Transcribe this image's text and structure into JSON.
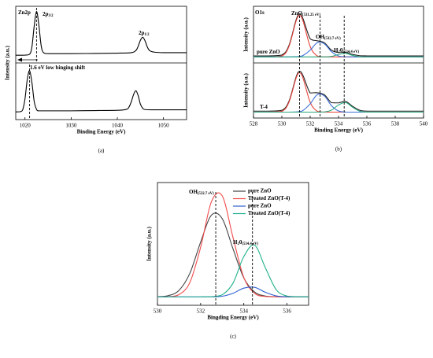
{
  "chart_data": [
    {
      "type": "line",
      "label": "(a)",
      "xlabel": "Binding Energy (eV)",
      "ylabel": "Intensity (a.u.)",
      "xlim": [
        1018,
        1055
      ],
      "xticks": [
        1020,
        1030,
        1040,
        1050
      ],
      "annotations": [
        {
          "segments": [
            {
              "text": "Zn2p"
            }
          ]
        },
        {
          "segments": [
            {
              "text": "2p"
            },
            {
              "text": "3/2",
              "sub": true
            }
          ]
        },
        {
          "segments": [
            {
              "text": "2p"
            },
            {
              "text": "1/2",
              "sub": true
            }
          ]
        },
        {
          "segments": [
            {
              "text": "1.6 eV low binging shift"
            }
          ]
        }
      ],
      "panels": [
        {
          "ylim": [
            -10,
            100
          ],
          "vlines": [
            1022.5
          ],
          "x": [
            1018,
            1020,
            1021,
            1021.5,
            1022,
            1022.5,
            1023,
            1023.5,
            1024,
            1025,
            1027,
            1030,
            1035,
            1040,
            1043,
            1044,
            1044.5,
            1045,
            1045.5,
            1046,
            1046.5,
            1047,
            1048,
            1050,
            1055
          ],
          "series": [
            {
              "color": "#000000",
              "values": [
                5,
                5.2,
                7,
                21,
                62,
                90,
                64,
                24,
                10,
                8,
                8,
                8,
                8.5,
                9,
                10,
                14,
                22,
                34,
                40,
                33,
                21,
                14,
                11,
                10,
                10
              ]
            }
          ]
        },
        {
          "ylim": [
            -10,
            100
          ],
          "vlines": [
            1021
          ],
          "x": [
            1018,
            1019,
            1019.5,
            1020,
            1020.5,
            1021,
            1021.5,
            1022,
            1022.5,
            1023,
            1025,
            1030,
            1035,
            1040,
            1042,
            1042.5,
            1043,
            1043.5,
            1044,
            1044.5,
            1045,
            1045.5,
            1046,
            1048,
            1055
          ],
          "series": [
            {
              "color": "#000000",
              "values": [
                5,
                5.5,
                9,
                30,
                68,
                85,
                62,
                25,
                10,
                7,
                7,
                7,
                7.5,
                8,
                10,
                14,
                24,
                38,
                46,
                37,
                20,
                12,
                9.5,
                9,
                9
              ]
            }
          ]
        }
      ]
    },
    {
      "type": "line",
      "label": "(b)",
      "xlabel": "Binding Energy (eV)",
      "xlim": [
        528,
        540
      ],
      "xticks": [
        528,
        530,
        532,
        534,
        536,
        538,
        540
      ],
      "vlines": [
        531.25,
        532.7,
        534.4
      ],
      "annotations": [
        {
          "segments": [
            {
              "text": "O1s"
            }
          ]
        },
        {
          "segments": [
            {
              "text": "ZnO"
            },
            {
              "text": "(531.25 eV)",
              "sub": true
            }
          ]
        },
        {
          "segments": [
            {
              "text": "OH"
            },
            {
              "text": "(532.7 eV)",
              "sub": true
            }
          ]
        },
        {
          "segments": [
            {
              "text": "H"
            },
            {
              "text": "2",
              "sub": true
            },
            {
              "text": "0"
            },
            {
              "text": "(534.4 eV)",
              "sub": true
            }
          ]
        },
        {
          "segments": [
            {
              "text": "pure ZnO"
            }
          ]
        },
        {
          "segments": [
            {
              "text": "T-4"
            }
          ]
        }
      ],
      "panels": [
        {
          "ylim": [
            -12,
            100
          ],
          "ylabel": "Intensity (a.u.)",
          "x": [
            528,
            529,
            530,
            530.5,
            531,
            531.25,
            531.5,
            532,
            532.5,
            533,
            533.5,
            534,
            534.5,
            535,
            535.5,
            536,
            537,
            538,
            540
          ],
          "series": [
            {
              "color": "#222222",
              "values": [
                2,
                2,
                3.7,
                22.5,
                72.6,
                84.9,
                75.1,
                35.8,
                31.8,
                27.9,
                13.3,
                8.5,
                8.9,
                4.9,
                2.4,
                2,
                2,
                2,
                2
              ]
            },
            {
              "color": "#e8433a",
              "values": [
                0,
                0,
                1.7,
                20.5,
                70.3,
                82,
                70.3,
                20.5,
                1.7,
                0,
                0,
                0,
                0,
                0,
                0,
                0,
                0,
                0,
                0
              ]
            },
            {
              "color": "#3a6fd8",
              "values": [
                0,
                0,
                0,
                0,
                0.3,
                0.9,
                2.8,
                13.3,
                28.1,
                25.9,
                10.4,
                1.8,
                0.1,
                0,
                0,
                0,
                0,
                0,
                0
              ]
            },
            {
              "color": "#2aa87e",
              "values": [
                0,
                0,
                0,
                0,
                0,
                0,
                0,
                0,
                0,
                0,
                0.9,
                4.7,
                6.8,
                2.9,
                0.4,
                0,
                0,
                0,
                0
              ]
            }
          ]
        },
        {
          "ylim": [
            -12,
            100
          ],
          "ylabel": "Intensity (a.u.)",
          "x": [
            528,
            529,
            530,
            530.5,
            531,
            531.25,
            531.5,
            532,
            532.5,
            533,
            533.5,
            534,
            534.5,
            535,
            535.5,
            536,
            537,
            538,
            540
          ],
          "series": [
            {
              "color": "#222222",
              "values": [
                2,
                2,
                3.7,
                22,
                71,
                83.1,
                74.1,
                38.9,
                39.3,
                35.2,
                19.2,
                18.8,
                21.8,
                11.7,
                3.8,
                2.1,
                2,
                2,
                2
              ]
            },
            {
              "color": "#e8433a",
              "values": [
                0,
                0,
                1.7,
                20,
                68.6,
                80,
                68.6,
                20,
                1.7,
                0,
                0,
                0,
                0,
                0,
                0,
                0,
                0,
                0,
                0
              ]
            },
            {
              "color": "#3a6fd8",
              "values": [
                0,
                0,
                0,
                0,
                0.4,
                1.1,
                3.5,
                16.9,
                35.6,
                32.8,
                13.2,
                2.3,
                0.2,
                0,
                0,
                0,
                0,
                0,
                0
              ]
            },
            {
              "color": "#2aa87e",
              "values": [
                0,
                0,
                0,
                0,
                0,
                0,
                0,
                0,
                0,
                0.4,
                4,
                14.5,
                19.6,
                9.7,
                1.8,
                0.1,
                0,
                0,
                0
              ]
            }
          ]
        }
      ]
    },
    {
      "type": "line",
      "label": "(c)",
      "xlabel": "Bingding Energy (eV)",
      "ylabel": "Intensity (a.u.)",
      "xlim": [
        530,
        537
      ],
      "xticks": [
        530,
        532,
        534,
        536
      ],
      "vlines": [
        532.7,
        534.4
      ],
      "legend": "upper right",
      "annotations": [
        {
          "segments": [
            {
              "text": "OH"
            },
            {
              "text": "(532.7 eV)",
              "sub": true
            }
          ]
        },
        {
          "segments": [
            {
              "text": "H"
            },
            {
              "text": "2",
              "sub": true
            },
            {
              "text": "0"
            },
            {
              "text": "(534.4 eV)",
              "sub": true
            }
          ]
        }
      ],
      "panels": [
        {
          "ylim": [
            -10,
            135
          ],
          "x": [
            530,
            530.5,
            531,
            531.5,
            532,
            532.5,
            533,
            533.5,
            534,
            534.5,
            535,
            535.5,
            536,
            536.5,
            537
          ],
          "series": [
            {
              "name": "pure ZnO",
              "color": "#444444",
              "values": [
                0.2,
                1.4,
                7.7,
                27.8,
                64.7,
                96.5,
                92.3,
                56.6,
                22.3,
                5.6,
                0.9,
                0.1,
                0,
                0,
                0
              ]
            },
            {
              "name": "Treated ZnO(T-4)",
              "color": "#f04a4a",
              "values": [
                0,
                0.2,
                2.7,
                16.9,
                58.6,
                112.4,
                119.2,
                70,
                22.8,
                4.1,
                0.4,
                0,
                0,
                0,
                0
              ]
            },
            {
              "name": "pure ZnO",
              "color": "#2f5fcf",
              "values": [
                0,
                0,
                0,
                0,
                0,
                0,
                0.7,
                4.2,
                10.3,
                11.2,
                5.3,
                1.1,
                0.1,
                0,
                0
              ]
            },
            {
              "name": "Treated ZnO(T-4)",
              "color": "#20b08a",
              "values": [
                0,
                0,
                0,
                0,
                0,
                0.2,
                2.4,
                16.2,
                47.6,
                61,
                34.2,
                8.4,
                0.9,
                0.1,
                0
              ]
            }
          ]
        }
      ]
    }
  ]
}
